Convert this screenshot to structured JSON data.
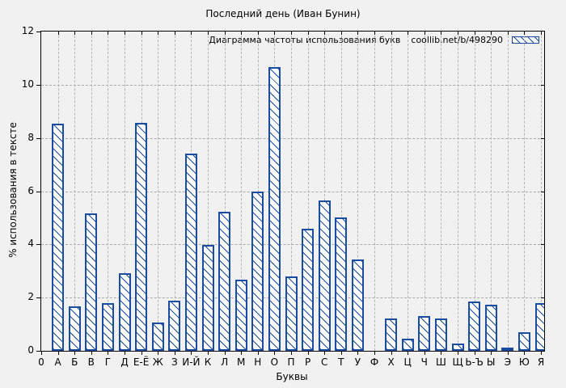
{
  "colors": {
    "bar": "#1a4da1",
    "grid": "#aaaaaa",
    "background": "#f1f1f1",
    "frame": "#000000"
  },
  "chart_data": {
    "type": "bar",
    "title": "Последний день (Иван Бунин)",
    "xlabel": "Буквы",
    "ylabel": "% использования в тексте",
    "ylim": [
      0,
      12
    ],
    "yticks": [
      0,
      2,
      4,
      6,
      8,
      10,
      12
    ],
    "grid": true,
    "legend_position": "top-right-inside",
    "legend": {
      "text": "Диаграмма частоты использования букв",
      "source": "coollib.net/b/498290"
    },
    "categories": [
      "0",
      "А",
      "Б",
      "В",
      "Г",
      "Д",
      "Е-Ё",
      "Ж",
      "З",
      "И-Й",
      "К",
      "Л",
      "М",
      "Н",
      "О",
      "П",
      "Р",
      "С",
      "Т",
      "У",
      "Ф",
      "Х",
      "Ц",
      "Ч",
      "Ш",
      "Щ",
      "Ь-Ъ",
      "Ы",
      "Э",
      "Ю",
      "Я"
    ],
    "values": [
      0,
      8.55,
      1.67,
      5.15,
      1.78,
      2.92,
      8.58,
      1.05,
      1.88,
      7.4,
      3.98,
      5.22,
      2.67,
      5.97,
      10.67,
      2.79,
      4.6,
      5.66,
      5.02,
      3.43,
      0,
      1.21,
      0.45,
      1.32,
      1.22,
      0.27,
      1.84,
      1.74,
      0.13,
      0.7,
      1.78
    ]
  }
}
